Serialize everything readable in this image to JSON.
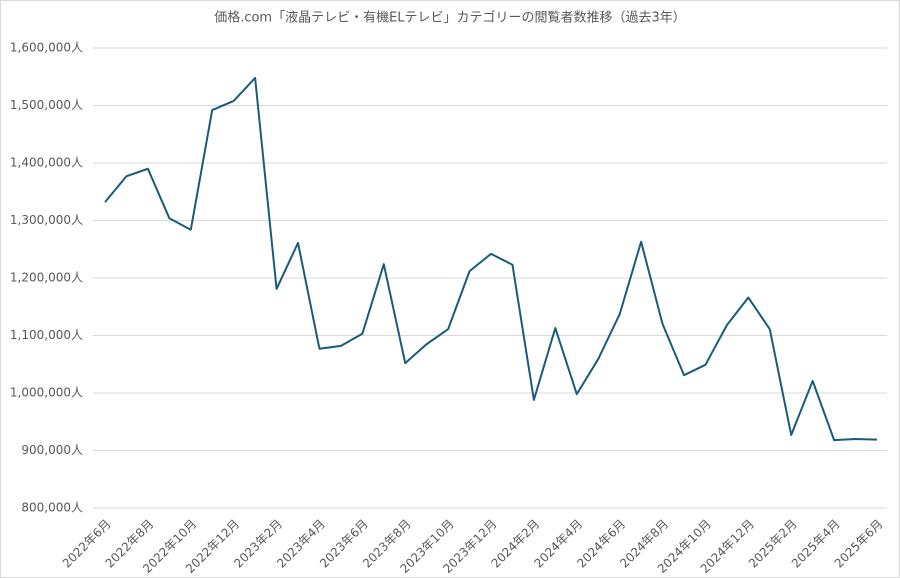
{
  "chart_data": {
    "type": "line",
    "title": "価格.com「液晶テレビ・有機ELテレビ」カテゴリーの閲覧者数推移（過去3年）",
    "categories": [
      "2022年6月",
      null,
      "2022年8月",
      null,
      "2022年10月",
      null,
      "2022年12月",
      null,
      "2023年2月",
      null,
      "2023年4月",
      null,
      "2023年6月",
      null,
      "2023年8月",
      null,
      "2023年10月",
      null,
      "2023年12月",
      null,
      "2024年2月",
      null,
      "2024年4月",
      null,
      "2024年6月",
      null,
      "2024年8月",
      null,
      "2024年10月",
      null,
      "2024年12月",
      null,
      "2025年2月",
      null,
      "2025年4月",
      null,
      "2025年6月"
    ],
    "values": [
      1332000,
      1377000,
      1390000,
      1304000,
      1284000,
      1492000,
      1508000,
      1548000,
      1181000,
      1261000,
      1077000,
      1082000,
      1103000,
      1224000,
      1052000,
      1085000,
      1111000,
      1212000,
      1242000,
      1223000,
      988000,
      1113000,
      998000,
      1059000,
      1137000,
      1263000,
      1120000,
      1031000,
      1049000,
      1118000,
      1166000,
      1111000,
      927000,
      1021000,
      918000,
      920000,
      919000
    ],
    "color": "#1b5b7a",
    "ylim": [
      800000,
      1600000
    ],
    "yticks": [
      {
        "value": 800000,
        "label": "800,000人"
      },
      {
        "value": 900000,
        "label": "900,000人"
      },
      {
        "value": 1000000,
        "label": "1,000,000人"
      },
      {
        "value": 1100000,
        "label": "1,100,000人"
      },
      {
        "value": 1200000,
        "label": "1,200,000人"
      },
      {
        "value": 1300000,
        "label": "1,300,000人"
      },
      {
        "value": 1400000,
        "label": "1,400,000人"
      },
      {
        "value": 1500000,
        "label": "1,500,000人"
      },
      {
        "value": 1600000,
        "label": "1,600,000人"
      }
    ],
    "grid": true
  }
}
